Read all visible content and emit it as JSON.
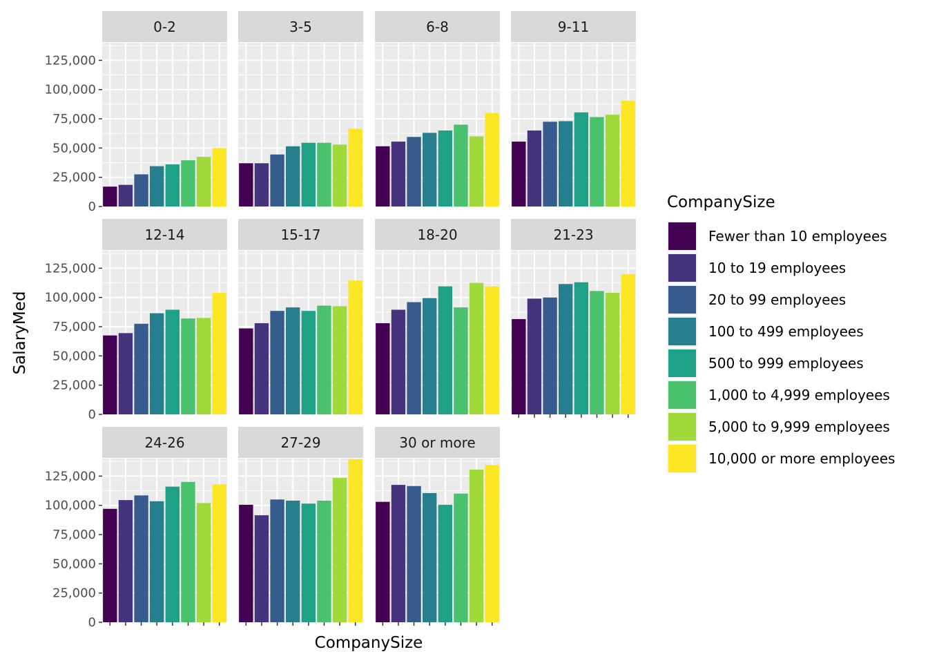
{
  "chart_data": {
    "type": "bar",
    "facet_by": "YearsCode",
    "facets": [
      "0-2",
      "3-5",
      "6-8",
      "9-11",
      "12-14",
      "15-17",
      "18-20",
      "21-23",
      "24-26",
      "27-29",
      "30 or more"
    ],
    "categories": [
      "Fewer than 10 employees",
      "10 to 19 employees",
      "20 to 99 employees",
      "100 to 499 employees",
      "500 to 999 employees",
      "1,000 to 4,999 employees",
      "5,000 to 9,999 employees",
      "10,000 or more employees"
    ],
    "colors": [
      "#440154",
      "#46337E",
      "#365C8D",
      "#277F8E",
      "#1FA187",
      "#4AC16D",
      "#9FDA3A",
      "#FDE725"
    ],
    "values": [
      [
        17000,
        18500,
        27500,
        34500,
        36000,
        39500,
        42500,
        50000
      ],
      [
        37000,
        37000,
        44500,
        51500,
        54500,
        54500,
        53000,
        66500
      ],
      [
        51500,
        55500,
        59500,
        63000,
        65000,
        70000,
        60000,
        80000
      ],
      [
        55500,
        65000,
        72500,
        73000,
        80500,
        76500,
        78500,
        90500
      ],
      [
        67500,
        69500,
        77500,
        86500,
        89500,
        82000,
        82500,
        104000
      ],
      [
        73500,
        78000,
        88500,
        91500,
        88500,
        93000,
        92500,
        114500
      ],
      [
        78000,
        89500,
        96000,
        99500,
        109500,
        91500,
        112500,
        109500
      ],
      [
        81500,
        99000,
        100000,
        111500,
        113000,
        105500,
        104000,
        120000
      ],
      [
        97000,
        104500,
        108500,
        103500,
        116000,
        120000,
        102000,
        118000
      ],
      [
        100500,
        91500,
        105000,
        104000,
        101500,
        104000,
        123500,
        139500
      ],
      [
        103000,
        117500,
        116500,
        110500,
        100500,
        110000,
        130500,
        134500
      ]
    ],
    "ylim": [
      0,
      140000
    ],
    "yticks": [
      0,
      25000,
      50000,
      75000,
      100000,
      125000
    ],
    "ytick_labels": [
      "0",
      "25,000",
      "50,000",
      "75,000",
      "100,000",
      "125,000"
    ],
    "xlabel": "CompanySize",
    "ylabel": "SalaryMed",
    "legend": {
      "title": "CompanySize",
      "position": "right",
      "entries": [
        "Fewer than 10 employees",
        "10 to 19 employees",
        "20 to 99 employees",
        "100 to 499 employees",
        "500 to 999 employees",
        "1,000 to 4,999 employees",
        "5,000 to 9,999 employees",
        "10,000 or more employees"
      ]
    },
    "grid": true,
    "panel_background": "#EBEBEB",
    "strip_background": "#D9D9D9"
  }
}
